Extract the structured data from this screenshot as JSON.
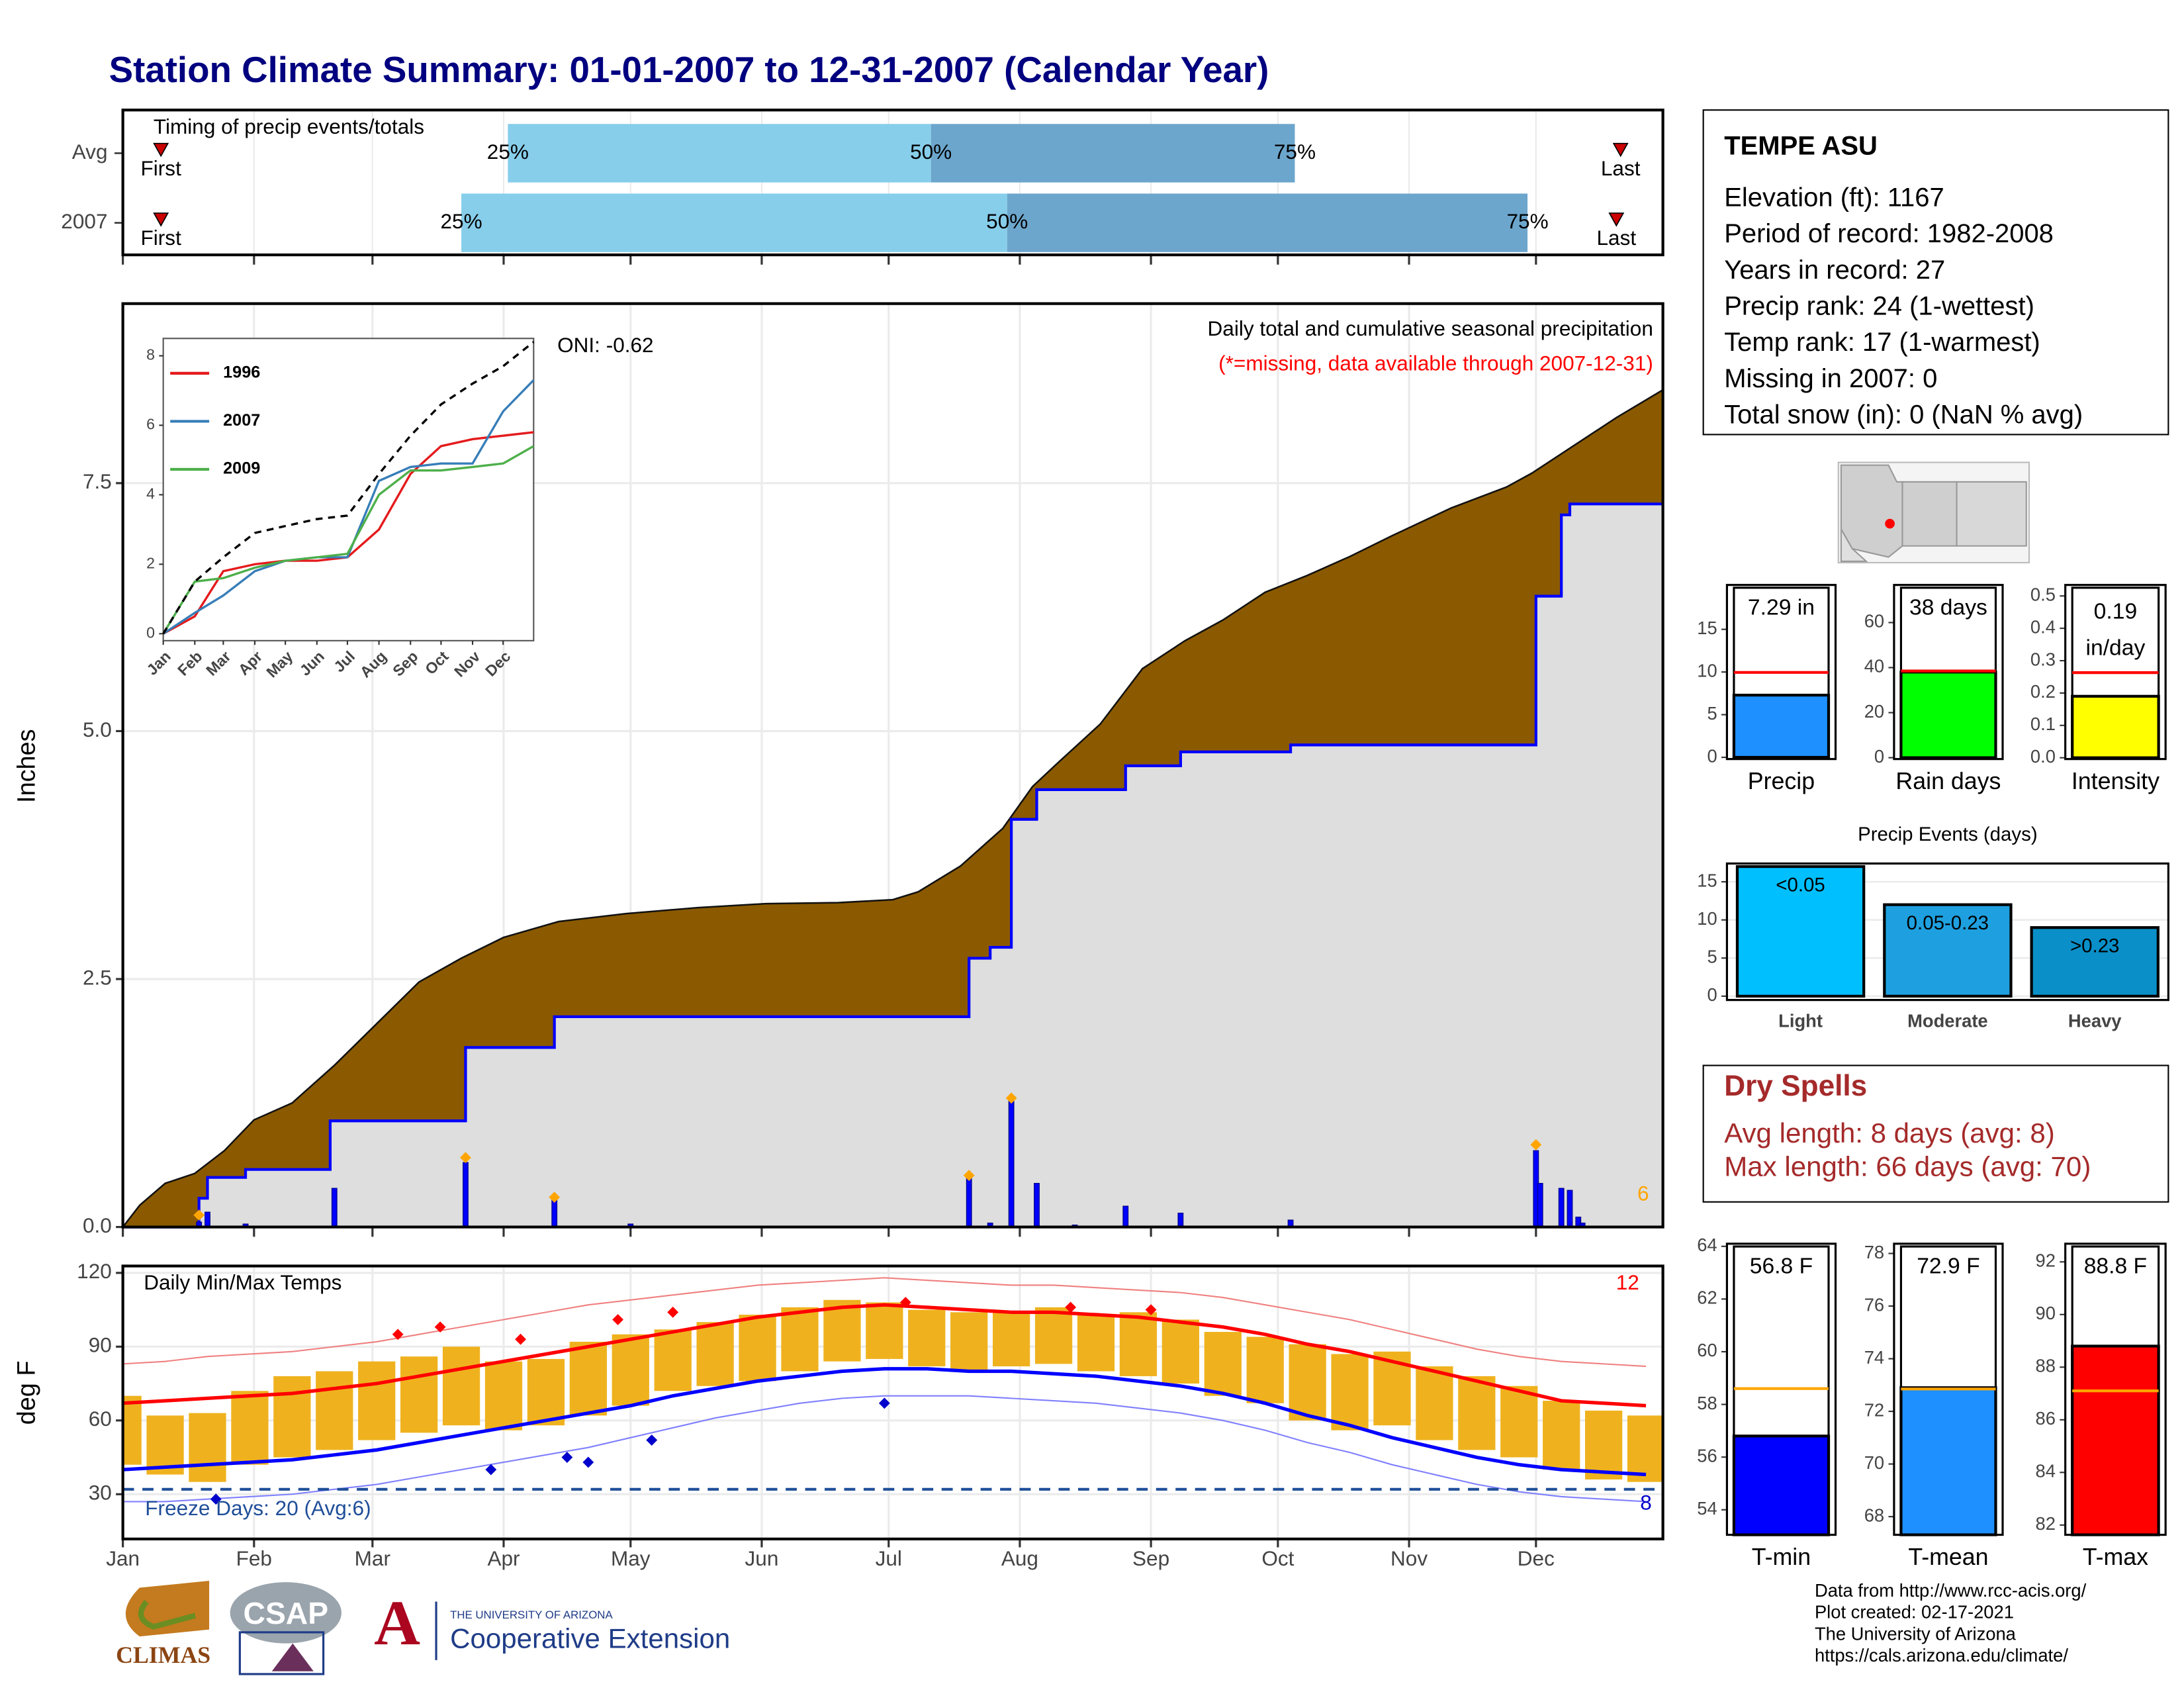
{
  "title": "Station Climate Summary: 01-01-2007 to 12-31-2007 (Calendar Year)",
  "chart_data": [
    {
      "type": "timing",
      "title": "Timing of precip events/totals",
      "categories": [
        "Avg",
        "2007"
      ],
      "xlim": [
        1,
        365
      ],
      "first": [
        10,
        10
      ],
      "last": [
        355,
        354
      ],
      "first_label": "First",
      "last_label": "Last",
      "q25": [
        92,
        81
      ],
      "q50": [
        192,
        210
      ],
      "q75": [
        278,
        333
      ],
      "quartile_labels": [
        "25%",
        "50%",
        "75%"
      ],
      "colors": [
        "#87CEEB",
        "#6CA6CD"
      ],
      "marker_color": "#CC0000"
    },
    {
      "type": "area",
      "ylabel": "Inches",
      "xlim": [
        1,
        365
      ],
      "ylim": [
        0,
        9.31
      ],
      "yticks": [
        {
          "value": 0,
          "label": "0.0"
        },
        2.5,
        {
          "value": 5,
          "label": "5.0"
        },
        7.5
      ],
      "xticks": [
        1,
        32,
        60,
        91,
        121,
        152,
        182,
        213,
        244,
        274,
        305,
        335
      ],
      "grid": true,
      "subtitle": "Daily total and cumulative seasonal precipitation",
      "note": "(*=missing, data available through 2007-12-31)",
      "note_color": "#FF0000",
      "oni": "ONI: -0.62",
      "record_count": 6,
      "record_color": "#FFA500",
      "series": [
        {
          "color": "#8B5A00",
          "x": [
            1,
            5,
            11,
            18,
            25,
            32,
            41,
            51,
            61,
            71,
            81,
            91,
            104,
            120,
            137,
            153,
            170,
            183,
            189,
            199,
            209,
            216,
            222,
            232,
            242,
            252,
            261,
            271,
            281,
            291,
            301,
            315,
            328,
            334,
            344,
            354,
            365
          ],
          "values": [
            0,
            0.22,
            0.44,
            0.54,
            0.77,
            1.08,
            1.25,
            1.63,
            2.05,
            2.47,
            2.71,
            2.92,
            3.08,
            3.16,
            3.22,
            3.26,
            3.27,
            3.3,
            3.38,
            3.64,
            4.02,
            4.44,
            4.68,
            5.07,
            5.63,
            5.91,
            6.12,
            6.4,
            6.57,
            6.76,
            6.97,
            7.25,
            7.46,
            7.6,
            7.88,
            8.16,
            8.44
          ]
        },
        {
          "color": "#0000FF",
          "fill": "#DEDEDE",
          "x": [
            1,
            19,
            19,
            21,
            21,
            30,
            30,
            50,
            50,
            82,
            82,
            103,
            103,
            201,
            201,
            206,
            206,
            211,
            211,
            217,
            217,
            238,
            238,
            251,
            251,
            277,
            277,
            335,
            335,
            341,
            341,
            343,
            343,
            365
          ],
          "values": [
            0,
            0,
            0.29,
            0.29,
            0.5,
            0.5,
            0.58,
            0.58,
            1.07,
            1.07,
            1.81,
            1.81,
            2.12,
            2.12,
            2.71,
            2.71,
            2.82,
            2.82,
            4.11,
            4.11,
            4.41,
            4.41,
            4.65,
            4.65,
            4.79,
            4.79,
            4.86,
            4.86,
            6.36,
            6.36,
            7.18,
            7.18,
            7.29,
            7.29
          ]
        }
      ],
      "daily": {
        "color": "#0000FF",
        "x": [
          19,
          21,
          30,
          51,
          82,
          103,
          121,
          201,
          206,
          211,
          217,
          226,
          238,
          251,
          277,
          335,
          336,
          341,
          343,
          345,
          346
        ],
        "values": [
          0.05,
          0.15,
          0.03,
          0.39,
          0.65,
          0.27,
          0.03,
          0.5,
          0.04,
          1.28,
          0.44,
          0.02,
          0.21,
          0.14,
          0.07,
          0.77,
          0.44,
          0.39,
          0.37,
          0.1,
          0.04
        ]
      },
      "records": {
        "x": [
          19,
          82,
          103,
          201,
          211,
          335
        ],
        "values": [
          0.12,
          0.7,
          0.3,
          0.52,
          1.3,
          0.83
        ]
      }
    },
    {
      "type": "line",
      "xlim": [
        1,
        365
      ],
      "ylim": [
        -0.2,
        8.5
      ],
      "yticks": [
        0,
        2,
        4,
        6,
        8
      ],
      "xticks": [
        {
          "value": 1,
          "label": "Jan"
        },
        {
          "value": 32,
          "label": "Feb"
        },
        {
          "value": 60,
          "label": "Mar"
        },
        {
          "value": 91,
          "label": "Apr"
        },
        {
          "value": 121,
          "label": "May"
        },
        {
          "value": 152,
          "label": "Jun"
        },
        {
          "value": 182,
          "label": "Jul"
        },
        {
          "value": 213,
          "label": "Aug"
        },
        {
          "value": 244,
          "label": "Sep"
        },
        {
          "value": 274,
          "label": "Oct"
        },
        {
          "value": 305,
          "label": "Nov"
        },
        {
          "value": 335,
          "label": "Dec"
        }
      ],
      "x": [
        1,
        32,
        60,
        91,
        121,
        152,
        182,
        213,
        244,
        274,
        305,
        335,
        365
      ],
      "series": [
        {
          "name": "1996",
          "color": "#E41A1C",
          "values": [
            0,
            0.5,
            1.8,
            2.0,
            2.1,
            2.1,
            2.2,
            3.0,
            4.6,
            5.4,
            5.6,
            5.7,
            5.8
          ]
        },
        {
          "name": "2007",
          "color": "#377EB8",
          "values": [
            0,
            0.6,
            1.1,
            1.8,
            2.1,
            2.2,
            2.2,
            4.4,
            4.8,
            4.9,
            4.9,
            6.4,
            7.3
          ]
        },
        {
          "name": "2009",
          "color": "#4DAF4A",
          "values": [
            0,
            1.5,
            1.6,
            1.9,
            2.1,
            2.2,
            2.3,
            4.0,
            4.7,
            4.7,
            4.8,
            4.9,
            5.4
          ]
        },
        {
          "color": "#000000",
          "dashed": true,
          "values": [
            0,
            1.5,
            2.2,
            2.9,
            3.1,
            3.3,
            3.4,
            4.6,
            5.7,
            6.6,
            7.2,
            7.7,
            8.4
          ]
        }
      ]
    },
    {
      "type": "temperature",
      "title": "Daily Min/Max Temps",
      "ylabel": "deg F",
      "xlim": [
        1,
        365
      ],
      "ylim": [
        11.8,
        122.8
      ],
      "yticks": [
        30,
        60,
        90,
        120
      ],
      "grid": true,
      "xticks": [
        {
          "value": 1,
          "label": "Jan"
        },
        {
          "value": 32,
          "label": "Feb"
        },
        {
          "value": 60,
          "label": "Mar"
        },
        {
          "value": 91,
          "label": "Apr"
        },
        {
          "value": 121,
          "label": "May"
        },
        {
          "value": 152,
          "label": "Jun"
        },
        {
          "value": 182,
          "label": "Jul"
        },
        {
          "value": 213,
          "label": "Aug"
        },
        {
          "value": 244,
          "label": "Sep"
        },
        {
          "value": 274,
          "label": "Oct"
        },
        {
          "value": 305,
          "label": "Nov"
        },
        {
          "value": 335,
          "label": "Dec"
        }
      ],
      "x": [
        1,
        11,
        21,
        31,
        41,
        51,
        61,
        71,
        81,
        91,
        101,
        111,
        121,
        131,
        141,
        151,
        161,
        171,
        181,
        191,
        201,
        211,
        221,
        231,
        241,
        251,
        261,
        271,
        281,
        291,
        301,
        311,
        321,
        331,
        341,
        351,
        361
      ],
      "bars": {
        "color": "#EFB21E",
        "low": [
          42,
          38,
          35,
          42,
          45,
          48,
          52,
          55,
          58,
          56,
          58,
          62,
          66,
          72,
          74,
          76,
          80,
          84,
          85,
          82,
          80,
          82,
          83,
          80,
          78,
          75,
          70,
          67,
          60,
          56,
          58,
          52,
          48,
          45,
          40,
          36,
          35
        ],
        "high": [
          70,
          62,
          63,
          72,
          78,
          80,
          84,
          86,
          90,
          84,
          85,
          92,
          95,
          97,
          100,
          103,
          106,
          109,
          108,
          105,
          104,
          104,
          106,
          103,
          104,
          101,
          96,
          94,
          91,
          87,
          88,
          82,
          78,
          74,
          68,
          64,
          62
        ]
      },
      "lines": [
        {
          "color": "#F08080",
          "width": 1,
          "values": [
            83,
            84,
            86,
            87,
            88,
            90,
            92,
            95,
            98,
            101,
            104,
            107,
            109,
            111,
            113,
            115,
            116,
            117,
            118,
            117,
            116,
            115,
            115,
            114,
            113,
            112,
            110,
            107,
            104,
            101,
            97,
            93,
            89,
            86,
            84,
            83,
            82
          ]
        },
        {
          "color": "#FF0000",
          "width": 2.5,
          "values": [
            67,
            68,
            69,
            70,
            71,
            73,
            75,
            78,
            81,
            84,
            87,
            90,
            93,
            96,
            99,
            102,
            104,
            106,
            107,
            106,
            105,
            104,
            104,
            103,
            102,
            100,
            98,
            95,
            91,
            88,
            84,
            80,
            76,
            72,
            68,
            67,
            66
          ]
        },
        {
          "color": "#0000FF",
          "width": 2.5,
          "values": [
            40,
            41,
            42,
            43,
            44,
            46,
            48,
            51,
            54,
            57,
            60,
            63,
            66,
            70,
            73,
            76,
            78,
            80,
            81,
            81,
            80,
            80,
            79,
            78,
            76,
            74,
            71,
            67,
            62,
            58,
            53,
            49,
            45,
            42,
            40,
            39,
            38
          ]
        },
        {
          "color": "#8080FF",
          "width": 1,
          "values": [
            27,
            27,
            28,
            29,
            30,
            32,
            34,
            37,
            40,
            43,
            46,
            49,
            53,
            57,
            61,
            64,
            67,
            69,
            70,
            70,
            70,
            69,
            68,
            67,
            65,
            63,
            60,
            56,
            51,
            47,
            42,
            38,
            34,
            31,
            29,
            28,
            27
          ]
        }
      ],
      "record_highs": {
        "color": "#FF0000",
        "x": [
          66,
          76,
          95,
          118,
          131,
          186,
          225,
          244
        ],
        "values": [
          95,
          98,
          93,
          101,
          104,
          108,
          106,
          105
        ]
      },
      "record_lows": {
        "color": "#0000CC",
        "x": [
          23,
          88,
          106,
          111,
          126,
          181
        ],
        "values": [
          28,
          40,
          45,
          43,
          52,
          67
        ]
      },
      "record_high_count": 12,
      "record_low_count": 8,
      "freeze_line": 32,
      "freeze_label": "Freeze Days: 20 (Avg:6)",
      "freeze_color": "#1F4E99"
    },
    {
      "type": "bar",
      "categories": [
        "Precip"
      ],
      "values": [
        7.29
      ],
      "value_labels": [
        "7.29 in"
      ],
      "avg": 9.95,
      "color": "#1E90FF",
      "avg_color": "#FF0000",
      "ylim": [
        -0.2,
        20.2
      ],
      "yticks": [
        0,
        5,
        10,
        15
      ]
    },
    {
      "type": "bar",
      "categories": [
        "Rain days"
      ],
      "values": [
        38
      ],
      "value_labels": [
        "38 days"
      ],
      "avg": 38.5,
      "color": "#00FF00",
      "avg_color": "#FF0000",
      "ylim": [
        -0.6,
        76.7
      ],
      "yticks": [
        0,
        20,
        40,
        60
      ]
    },
    {
      "type": "bar",
      "categories": [
        "Intensity"
      ],
      "values": [
        0.19
      ],
      "unit": "in/day",
      "avg": 0.263,
      "color": "#FFFF00",
      "avg_color": "#FF0000",
      "ylim": [
        -0.004,
        0.534
      ],
      "yticks": [
        {
          "value": 0,
          "label": "0.0"
        },
        0.1,
        0.2,
        0.3,
        0.4,
        0.5
      ]
    },
    {
      "type": "events",
      "title": "Precip Events (days)",
      "categories": [
        "Light",
        "Moderate",
        "Heavy"
      ],
      "values": [
        17,
        12,
        9
      ],
      "bin_labels": [
        "<0.05",
        "0.05-0.23",
        ">0.23"
      ],
      "colors": [
        "#00BFFF",
        "#1EA0E0",
        "#0A8FC8"
      ],
      "ylim": [
        -0.5,
        17.4
      ],
      "yticks": [
        0,
        5,
        10,
        15
      ],
      "grid": true
    },
    {
      "type": "bar",
      "categories": [
        "T-min"
      ],
      "values": [
        56.8
      ],
      "value_labels": [
        "56.8 F"
      ],
      "avg": 58.6,
      "color": "#0000FF",
      "avg_color": "#FFA500",
      "ylim": [
        53.05,
        64.1
      ],
      "yticks": [
        54,
        56,
        58,
        60,
        62,
        64
      ]
    },
    {
      "type": "bar",
      "categories": [
        "T-mean"
      ],
      "values": [
        72.9
      ],
      "value_labels": [
        "72.9 F"
      ],
      "avg": 72.85,
      "color": "#1E90FF",
      "avg_color": "#FFA500",
      "ylim": [
        67.31,
        78.37
      ],
      "yticks": [
        68,
        70,
        72,
        74,
        76,
        78
      ]
    },
    {
      "type": "bar",
      "categories": [
        "T-max"
      ],
      "values": [
        88.8
      ],
      "value_labels": [
        "88.8 F"
      ],
      "avg": 87.1,
      "color": "#FF0000",
      "avg_color": "#FFA500",
      "ylim": [
        81.63,
        92.69
      ],
      "yticks": [
        82,
        84,
        86,
        88,
        90,
        92
      ]
    }
  ],
  "station_info": {
    "name": "TEMPE ASU",
    "lines": [
      "Elevation (ft): 1167",
      "Period of record: 1982-2008",
      "Years in record: 27",
      "Precip rank: 24 (1-wettest)",
      "Temp rank: 17 (1-warmest)",
      "Missing in 2007: 0",
      "Total snow (in): 0 (NaN % avg)"
    ]
  },
  "dry_spells": {
    "title": "Dry Spells",
    "lines": [
      "Avg length: 8 days (avg: 8)",
      "Max length: 66 days (avg: 70)"
    ]
  },
  "footer": {
    "lines": [
      "Data from http://www.rcc-acis.org/",
      "Plot created: 02-17-2021",
      "The University of Arizona",
      "https://cals.arizona.edu/climate/"
    ]
  },
  "logos": {
    "climas": "CLIMAS",
    "csap": "CSAP",
    "ua_mark": "A",
    "ua_line1": "THE UNIVERSITY OF ARIZONA",
    "ua_line2": "Cooperative Extension"
  }
}
